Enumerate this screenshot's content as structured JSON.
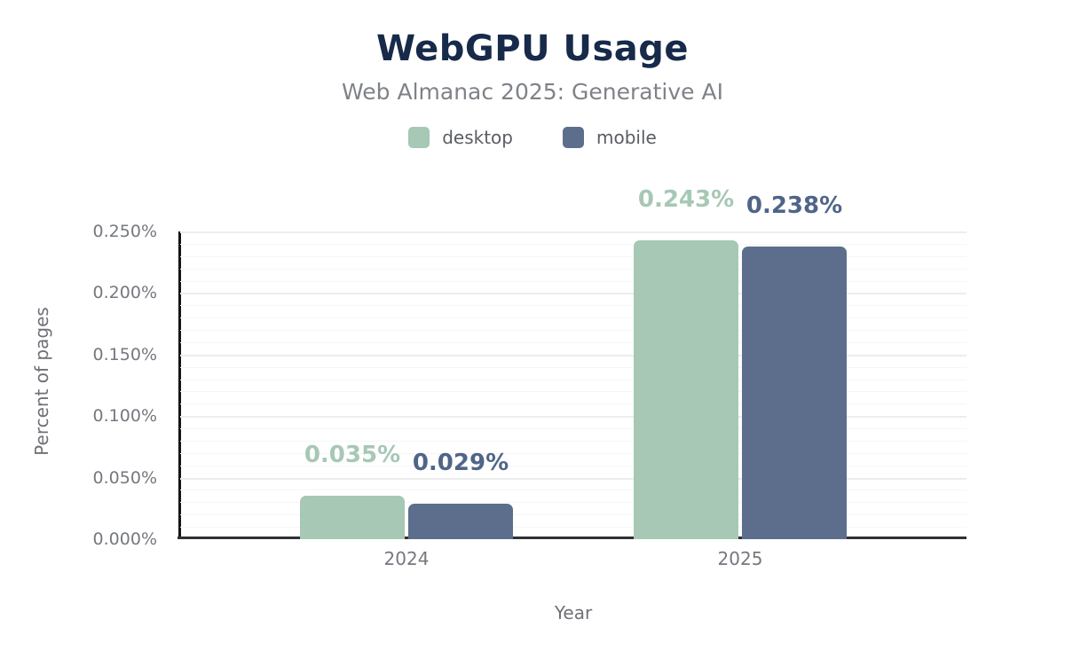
{
  "title": "WebGPU Usage",
  "subtitle": "Web Almanac 2025: Generative AI",
  "colors": {
    "title_text": "#172a4a",
    "subtitle_text": "#7f8288",
    "axis_text": "#75787f",
    "desktop": "#a6c8b5",
    "mobile": "#5d6e8c",
    "desktop_value_label": "#a6c8b5",
    "mobile_value_label": "#4f6588"
  },
  "chart_data": {
    "type": "bar",
    "title": "WebGPU Usage",
    "subtitle": "Web Almanac 2025: Generative AI",
    "categories": [
      "2024",
      "2025"
    ],
    "series": [
      {
        "name": "desktop",
        "color": "#a6c8b5",
        "label_color": "#a6c8b5",
        "values": [
          0.035,
          0.243
        ],
        "value_labels": [
          "0.035%",
          "0.243%"
        ]
      },
      {
        "name": "mobile",
        "color": "#5d6e8c",
        "label_color": "#4f6588",
        "values": [
          0.029,
          0.238
        ],
        "value_labels": [
          "0.029%",
          "0.238%"
        ]
      }
    ],
    "xlabel": "Year",
    "ylabel": "Percent of pages",
    "ylim": [
      0,
      0.25
    ],
    "ytick_labels": [
      "0.000%",
      "0.050%",
      "0.100%",
      "0.150%",
      "0.200%",
      "0.250%"
    ],
    "ytick_step": 0.05,
    "minor_grid_step": 0.01,
    "grid": true,
    "legend_position": "top"
  }
}
